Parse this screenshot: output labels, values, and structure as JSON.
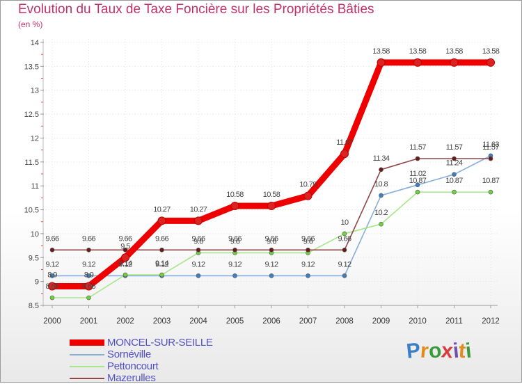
{
  "title": "Evolution du Taux de Taxe Foncière sur les Propriétés Bâties",
  "unit_label": "(en %)",
  "logo": {
    "text": "Proxiti",
    "letters": [
      "P",
      "r",
      "o",
      "x",
      "i",
      "t",
      "i"
    ],
    "colors": [
      "#3d7fc4",
      "#e08b1c",
      "#3a9b3a",
      "#d93a3a",
      "#6f4fb0",
      "#e08b1c",
      "#3a9b3a"
    ]
  },
  "chart_data": {
    "type": "line",
    "title": "Evolution du Taux de Taxe Foncière sur les Propriétés Bâties",
    "ylabel": "(en %)",
    "xlabel": "",
    "ylim": [
      8.5,
      14
    ],
    "yticks": [
      "8.5",
      "9",
      "9.5",
      "10",
      "10.5",
      "11",
      "11.5",
      "12",
      "12.5",
      "13",
      "13.5",
      "14"
    ],
    "categories": [
      "2000",
      "2001",
      "2002",
      "2003",
      "2004",
      "2005",
      "2006",
      "2007",
      "2008",
      "2009",
      "2010",
      "2011",
      "2012"
    ],
    "series": [
      {
        "name": "MONCEL-SUR-SEILLE",
        "color": "#ee0000",
        "marker": "#dd2222",
        "values": [
          8.9,
          8.9,
          9.5,
          10.27,
          10.27,
          10.58,
          10.58,
          10.79,
          11.67,
          13.58,
          13.58,
          13.58,
          13.58
        ],
        "labels": [
          "8.9",
          "8.9",
          "9.5",
          "10.27",
          "10.27",
          "10.58",
          "10.58",
          "10.79",
          "11.67",
          "13.58",
          "13.58",
          "13.58",
          "13.58"
        ]
      },
      {
        "name": "Sornéville",
        "color": "#86aedb",
        "marker": "#3f7fc0",
        "values": [
          9.12,
          9.12,
          9.12,
          9.12,
          9.12,
          9.12,
          9.12,
          9.12,
          9.12,
          10.8,
          11.02,
          11.24,
          11.63
        ],
        "labels": [
          "9.12",
          "9.12",
          "9.12",
          "9.12",
          "9.12",
          "9.12",
          "9.12",
          "9.12",
          "9.12",
          "10.8",
          "11.02",
          "11.24",
          "11.63"
        ]
      },
      {
        "name": "Pettoncourt",
        "color": "#a6e68c",
        "marker": "#6fd23c",
        "values": [
          8.66,
          8.66,
          9.14,
          9.14,
          9.6,
          9.6,
          9.6,
          9.6,
          10.0,
          10.2,
          10.87,
          10.87,
          10.87
        ],
        "labels": [
          "8.66",
          "8.66",
          "9.14",
          "9.14",
          "9.6",
          "9.6",
          "9.6",
          "9.6",
          "10",
          "10.2",
          "10.87",
          "10.87",
          "10.87"
        ]
      },
      {
        "name": "Mazerulles",
        "color": "#8e4848",
        "marker": "#6b1a1a",
        "values": [
          9.66,
          9.66,
          9.66,
          9.66,
          9.66,
          9.66,
          9.66,
          9.66,
          9.66,
          11.34,
          11.57,
          11.57,
          11.57
        ],
        "labels": [
          "9.66",
          "9.66",
          "9.66",
          "9.66",
          "9.66",
          "9.66",
          "9.66",
          "9.66",
          "9.66",
          "11.34",
          "11.57",
          "11.57",
          "11.57"
        ]
      }
    ],
    "legend": "bottom-left"
  }
}
